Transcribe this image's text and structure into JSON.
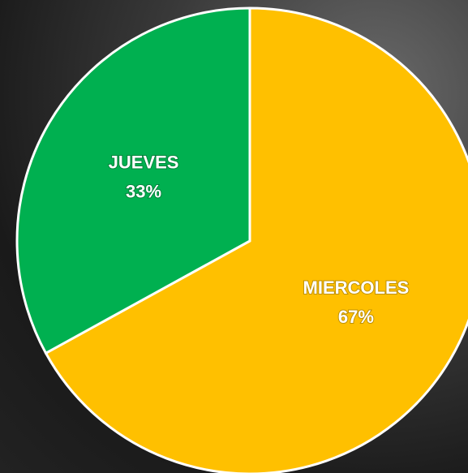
{
  "chart_data": {
    "type": "pie",
    "categories": [
      "MIERCOLES",
      "JUEVES"
    ],
    "values": [
      67,
      33
    ],
    "value_labels": [
      "67%",
      "33%"
    ],
    "colors": [
      "#ffc000",
      "#00b050"
    ]
  }
}
